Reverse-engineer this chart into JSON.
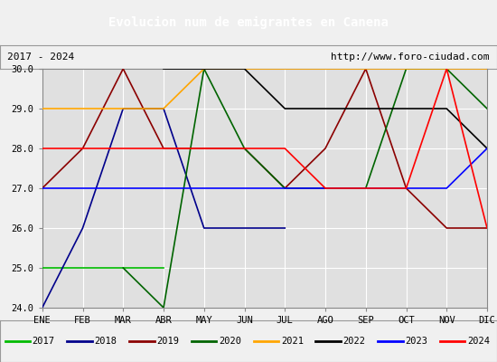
{
  "title": "Evolucion num de emigrantes en Canena",
  "subtitle_left": "2017 - 2024",
  "subtitle_right": "http://www.foro-ciudad.com",
  "months": [
    "ENE",
    "FEB",
    "MAR",
    "ABR",
    "MAY",
    "JUN",
    "JUL",
    "AGO",
    "SEP",
    "OCT",
    "NOV",
    "DIC"
  ],
  "ylim": [
    24.0,
    30.0
  ],
  "yticks": [
    24.0,
    25.0,
    26.0,
    27.0,
    28.0,
    29.0,
    30.0
  ],
  "series": {
    "2017": {
      "color": "#00bb00",
      "data": {
        "1": 25,
        "2": 25,
        "3": 25,
        "4": 25
      }
    },
    "2018": {
      "color": "#00008b",
      "data": {
        "1": 24,
        "2": 26,
        "3": 29,
        "4": 29,
        "5": 26,
        "6": 26,
        "7": 26
      }
    },
    "2019": {
      "color": "#8b0000",
      "data": {
        "1": 27,
        "2": 28,
        "3": 30,
        "4": 28,
        "5": 28,
        "6": 28,
        "7": 27,
        "8": 28,
        "9": 30,
        "10": 27,
        "11": 26,
        "12": 26
      }
    },
    "2020": {
      "color": "#006400",
      "data": {
        "3": 25,
        "4": 24,
        "5": 30,
        "6": 28,
        "7": 27,
        "8": 27,
        "9": 27,
        "10": 30,
        "11": 30,
        "12": 29
      }
    },
    "2021": {
      "color": "#ffa500",
      "data": {
        "1": 29,
        "2": 29,
        "3": 29,
        "4": 29,
        "5": 30,
        "6": 30,
        "7": 30,
        "8": 30,
        "9": 30,
        "10": 30,
        "11": 30,
        "12": 30
      }
    },
    "2022": {
      "color": "#000000",
      "data": {
        "4": 30,
        "5": 30,
        "6": 30,
        "7": 29,
        "8": 29,
        "9": 29,
        "10": 29,
        "11": 29,
        "12": 28
      }
    },
    "2023": {
      "color": "#0000ff",
      "data": {
        "1": 27,
        "2": 27,
        "3": 27,
        "4": 27,
        "5": 27,
        "6": 27,
        "7": 27,
        "8": 27,
        "9": 27,
        "10": 27,
        "11": 27,
        "12": 28
      }
    },
    "2024": {
      "color": "#ff0000",
      "data": {
        "1": 28,
        "2": 28,
        "3": 28,
        "4": 28,
        "5": 28,
        "6": 28,
        "7": 28,
        "8": 27,
        "9": 27,
        "10": 27,
        "11": 30,
        "12": 26
      }
    }
  },
  "background_color": "#f0f0f0",
  "plot_bg_color": "#e0e0e0",
  "title_bg_color": "#4472c4",
  "title_color": "#ffffff",
  "grid_color": "#ffffff",
  "legend_order": [
    "2017",
    "2018",
    "2019",
    "2020",
    "2021",
    "2022",
    "2023",
    "2024"
  ]
}
